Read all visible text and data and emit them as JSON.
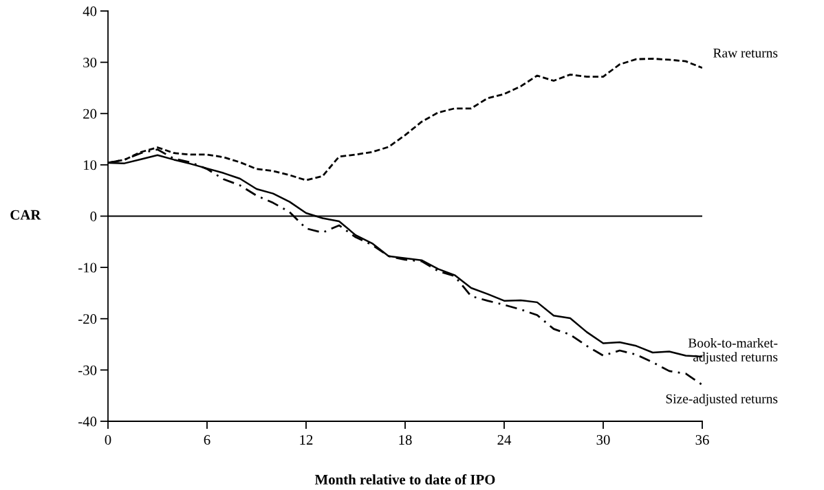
{
  "chart_data": {
    "type": "line",
    "xlabel": "Month relative to date of IPO",
    "ylabel": "CAR",
    "x": [
      0,
      1,
      2,
      3,
      4,
      5,
      6,
      7,
      8,
      9,
      10,
      11,
      12,
      13,
      14,
      15,
      16,
      17,
      18,
      19,
      20,
      21,
      22,
      23,
      24,
      25,
      26,
      27,
      28,
      29,
      30,
      31,
      32,
      33,
      34,
      35,
      36
    ],
    "series": [
      {
        "name": "Raw returns",
        "color": "#000000",
        "line_style": "dashed",
        "values": [
          10.4,
          11,
          12.5,
          13.4,
          12.3,
          12,
          12,
          11.5,
          10.5,
          9.2,
          8.8,
          8,
          7,
          7.8,
          11.6,
          12,
          12.5,
          13.5,
          15.8,
          18.4,
          20.2,
          21,
          21,
          23,
          23.8,
          25.3,
          27.4,
          26.4,
          27.6,
          27.2,
          27.2,
          29.6,
          30.6,
          30.7,
          30.5,
          30.2,
          28.9
        ]
      },
      {
        "name": "Book-to-market-\nadjusted returns",
        "color": "#000000",
        "line_style": "solid",
        "values": [
          10.4,
          10.3,
          11.1,
          11.9,
          11,
          10.2,
          9.3,
          8.4,
          7.3,
          5.3,
          4.4,
          2.8,
          0.6,
          -0.4,
          -1,
          -3.7,
          -5.3,
          -7.8,
          -8.2,
          -8.6,
          -10.3,
          -11.5,
          -14,
          -15.2,
          -16.5,
          -16.4,
          -16.8,
          -19.4,
          -19.9,
          -22.6,
          -24.8,
          -24.6,
          -25.3,
          -26.6,
          -26.4,
          -27.2,
          -27.4
        ]
      },
      {
        "name": "Size-adjusted returns",
        "color": "#000000",
        "line_style": "dashdot",
        "values": [
          10.4,
          11,
          12.3,
          13,
          11.2,
          10.5,
          9.2,
          7.2,
          6,
          4,
          2.6,
          0.8,
          -2.4,
          -3.2,
          -1.8,
          -4.1,
          -5.6,
          -7.8,
          -8.5,
          -8.8,
          -10.7,
          -11.7,
          -15.6,
          -16.5,
          -17.3,
          -18.2,
          -19.3,
          -22,
          -23.1,
          -25.3,
          -27.2,
          -26.2,
          -27,
          -28.5,
          -30.2,
          -30.7,
          -32.9
        ]
      }
    ],
    "xlim": [
      0,
      36
    ],
    "xticks": [
      0,
      6,
      12,
      18,
      24,
      30,
      36
    ],
    "ylim": [
      -40,
      40
    ],
    "yticks": [
      {
        "value": -40,
        "label": "-40"
      },
      {
        "value": -30,
        "label": "-30"
      },
      {
        "value": -20,
        "label": "-20"
      },
      {
        "value": -10,
        "label": "-10"
      },
      0,
      10,
      20,
      30,
      40
    ],
    "ref_lines": [
      {
        "axis": "y",
        "value": 0,
        "color": "#000000"
      }
    ],
    "grid": false,
    "legend": false,
    "marker": "none"
  }
}
